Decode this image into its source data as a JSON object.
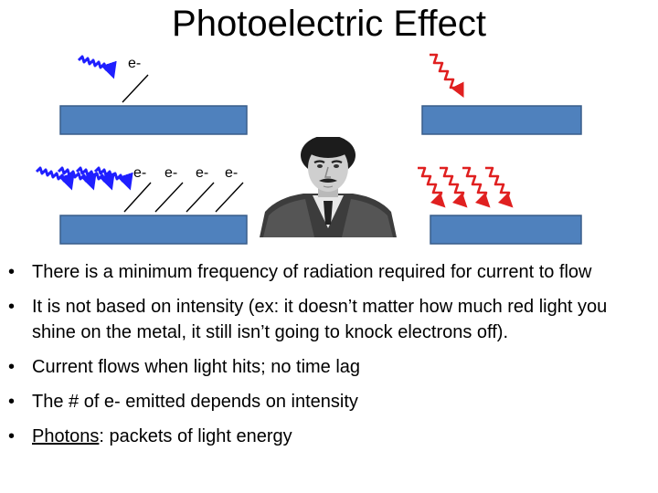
{
  "title": "Photoelectric Effect",
  "electron_label": "e-",
  "portrait": "portrait-of-scientist",
  "colors": {
    "plate": "#4f81bd",
    "blue_light": "#1f1fff",
    "red_light": "#e02020"
  },
  "bullets": [
    {
      "text": "There is a minimum frequency of radiation required for current to flow"
    },
    {
      "text": "It is not based on intensity (ex:  it doesn’t matter how much red light you shine on the metal, it still isn’t going to knock electrons off)."
    },
    {
      "text": "Current flows when light hits; no time lag"
    },
    {
      "text": "The # of e- emitted depends on intensity"
    },
    {
      "term": "Photons",
      "text": ": packets of light energy"
    }
  ]
}
